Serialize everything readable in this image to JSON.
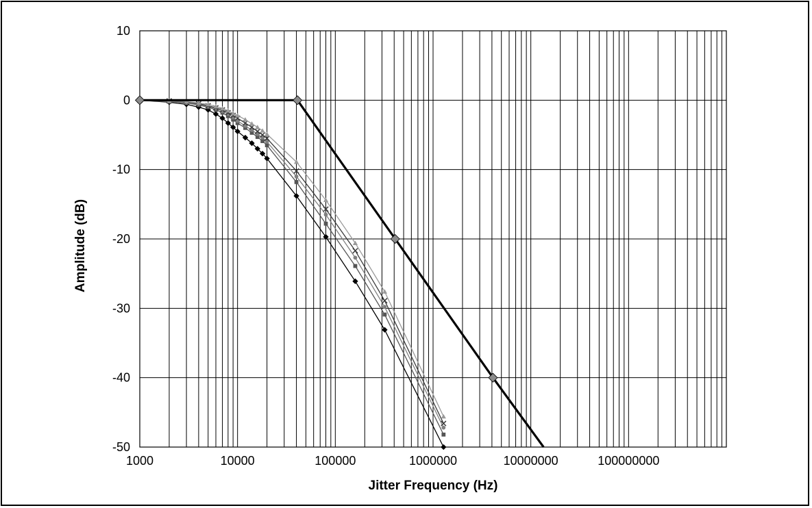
{
  "chart_data": {
    "type": "line",
    "title": "",
    "xlabel": "Jitter Frequency (Hz)",
    "ylabel": "Amplitude (dB)",
    "x_scale": "log",
    "xlim": [
      1000,
      1000000000
    ],
    "ylim": [
      -50,
      10
    ],
    "x_ticks": [
      "1000",
      "10000",
      "100000",
      "1000000",
      "10000000",
      "100000000"
    ],
    "y_ticks": [
      "10",
      "0",
      "-10",
      "-20",
      "-30",
      "-40",
      "-50"
    ],
    "grid": true,
    "legend": "none",
    "series": [
      {
        "role": "mask",
        "color": "#000000",
        "marker": "diamond",
        "x": [
          1000,
          41000,
          410000,
          4100000
        ],
        "y": [
          0,
          0,
          -20,
          -40
        ],
        "extend_to_y": -50,
        "extend_x": 13500000
      },
      {
        "role": "measured",
        "color": "#000000",
        "marker": "diamond",
        "x": [
          1000,
          2000,
          3000,
          4000,
          5000,
          6000,
          7000,
          8000,
          9000,
          10000,
          12000,
          14000,
          16000,
          18000,
          20000,
          40000,
          80000,
          160000,
          320000,
          1280000
        ],
        "y": [
          0,
          -0.3,
          -0.6,
          -1.0,
          -1.4,
          -2.0,
          -2.6,
          -3.3,
          -3.9,
          -4.5,
          -5.4,
          -6.2,
          -7.0,
          -7.7,
          -8.4,
          -13.8,
          -19.7,
          -26.1,
          -33.1,
          -50.0
        ]
      },
      {
        "role": "measured",
        "color": "#555555",
        "marker": "square",
        "x": [
          1000,
          2000,
          3000,
          4000,
          5000,
          6000,
          7000,
          8000,
          9000,
          10000,
          12000,
          14000,
          16000,
          18000,
          20000,
          40000,
          80000,
          160000,
          320000,
          1280000
        ],
        "y": [
          0,
          -0.2,
          -0.4,
          -0.7,
          -1.0,
          -1.4,
          -1.8,
          -2.3,
          -2.8,
          -3.3,
          -4.0,
          -4.7,
          -5.3,
          -5.9,
          -6.5,
          -11.8,
          -17.8,
          -23.9,
          -30.9,
          -48.2
        ]
      },
      {
        "role": "measured",
        "color": "#808080",
        "marker": "circle",
        "x": [
          1000,
          2000,
          3000,
          4000,
          5000,
          6000,
          7000,
          8000,
          9000,
          10000,
          12000,
          14000,
          16000,
          18000,
          20000,
          40000,
          80000,
          160000,
          320000,
          1280000
        ],
        "y": [
          0,
          -0.2,
          -0.4,
          -0.6,
          -0.9,
          -1.2,
          -1.6,
          -2.0,
          -2.5,
          -3.0,
          -3.7,
          -4.3,
          -4.9,
          -5.4,
          -6.0,
          -11.0,
          -16.5,
          -22.7,
          -29.8,
          -47.2
        ]
      },
      {
        "role": "measured",
        "color": "#3a3a3a",
        "marker": "x",
        "x": [
          1000,
          2000,
          3000,
          4000,
          5000,
          6000,
          7000,
          8000,
          9000,
          10000,
          12000,
          14000,
          16000,
          18000,
          20000,
          40000,
          80000,
          160000,
          320000,
          1280000
        ],
        "y": [
          0,
          -0.1,
          -0.3,
          -0.5,
          -0.8,
          -1.1,
          -1.4,
          -1.8,
          -2.2,
          -2.6,
          -3.3,
          -3.9,
          -4.5,
          -5.0,
          -5.5,
          -10.2,
          -15.7,
          -21.7,
          -28.9,
          -46.6
        ]
      },
      {
        "role": "measured",
        "color": "#9a9a9a",
        "marker": "triangle",
        "x": [
          1000,
          2000,
          3000,
          4000,
          5000,
          6000,
          7000,
          8000,
          9000,
          10000,
          12000,
          14000,
          16000,
          18000,
          20000,
          40000,
          80000,
          160000,
          320000,
          1280000
        ],
        "y": [
          0,
          -0.1,
          -0.2,
          -0.4,
          -0.6,
          -0.9,
          -1.2,
          -1.5,
          -1.9,
          -2.2,
          -2.8,
          -3.4,
          -3.9,
          -4.4,
          -4.9,
          -8.9,
          -14.4,
          -20.6,
          -27.6,
          -45.6
        ]
      }
    ]
  }
}
